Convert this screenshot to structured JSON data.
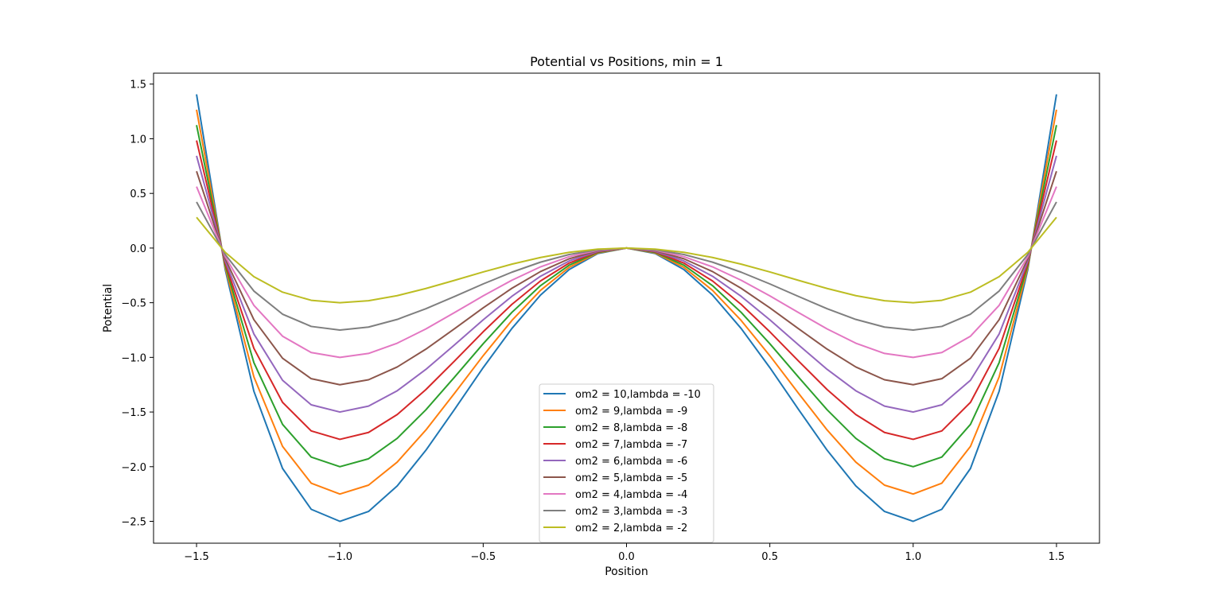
{
  "chart_data": {
    "type": "line",
    "title": "Potential vs Positions, min  = 1",
    "xlabel": "Position",
    "ylabel": "Potential",
    "xlim": [
      -1.65,
      1.65
    ],
    "ylim": [
      -2.7,
      1.6
    ],
    "xticks": [
      -1.5,
      -1.0,
      -0.5,
      0.0,
      0.5,
      1.0,
      1.5
    ],
    "xtick_labels": [
      "−1.5",
      "−1.0",
      "−0.5",
      "0.0",
      "0.5",
      "1.0",
      "1.5"
    ],
    "yticks": [
      -2.5,
      -2.0,
      -1.5,
      -1.0,
      -0.5,
      0.0,
      0.5,
      1.0,
      1.5
    ],
    "ytick_labels": [
      "−2.5",
      "−2.0",
      "−1.5",
      "−1.0",
      "−0.5",
      "0.0",
      "0.5",
      "1.0",
      "1.5"
    ],
    "grid": false,
    "legend_position": "bottom-center",
    "x": [
      -1.5,
      -1.4,
      -1.3,
      -1.2,
      -1.1,
      -1.0,
      -0.9,
      -0.8,
      -0.7,
      -0.6,
      -0.5,
      -0.4,
      -0.3,
      -0.2,
      -0.1,
      0.0,
      0.1,
      0.2,
      0.3,
      0.4,
      0.5,
      0.6,
      0.7,
      0.8,
      0.9,
      1.0,
      1.1,
      1.2,
      1.3,
      1.4,
      1.5
    ],
    "series": [
      {
        "name": "om2 = 10,lambda = -10",
        "color": "#1f77b4",
        "a": 10
      },
      {
        "name": "om2 = 9,lambda = -9",
        "color": "#ff7f0e",
        "a": 9
      },
      {
        "name": "om2 = 8,lambda = -8",
        "color": "#2ca02c",
        "a": 8
      },
      {
        "name": "om2 = 7,lambda = -7",
        "color": "#d62728",
        "a": 7
      },
      {
        "name": "om2 = 6,lambda = -6",
        "color": "#9467bd",
        "a": 6
      },
      {
        "name": "om2 = 5,lambda = -5",
        "color": "#8c564b",
        "a": 5
      },
      {
        "name": "om2 = 4,lambda = -4",
        "color": "#e377c2",
        "a": 4
      },
      {
        "name": "om2 = 3,lambda = -3",
        "color": "#7f7f7f",
        "a": 3
      },
      {
        "name": "om2 = 2,lambda = -2",
        "color": "#bcbd22",
        "a": 2
      }
    ]
  }
}
